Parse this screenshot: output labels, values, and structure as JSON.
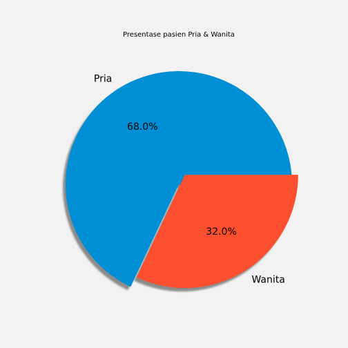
{
  "chart_data": {
    "type": "pie",
    "title": "Presentase pasien Pria & Wanita",
    "labels": [
      "Pria",
      "Wanita"
    ],
    "values": [
      68.0,
      32.0
    ],
    "percent_labels": [
      "68.0%",
      "32.0%"
    ],
    "colors": [
      "#008fd5",
      "#fc4f30"
    ],
    "explode": [
      0,
      0.1
    ],
    "shadow": true,
    "start_angle_deg": 0
  }
}
